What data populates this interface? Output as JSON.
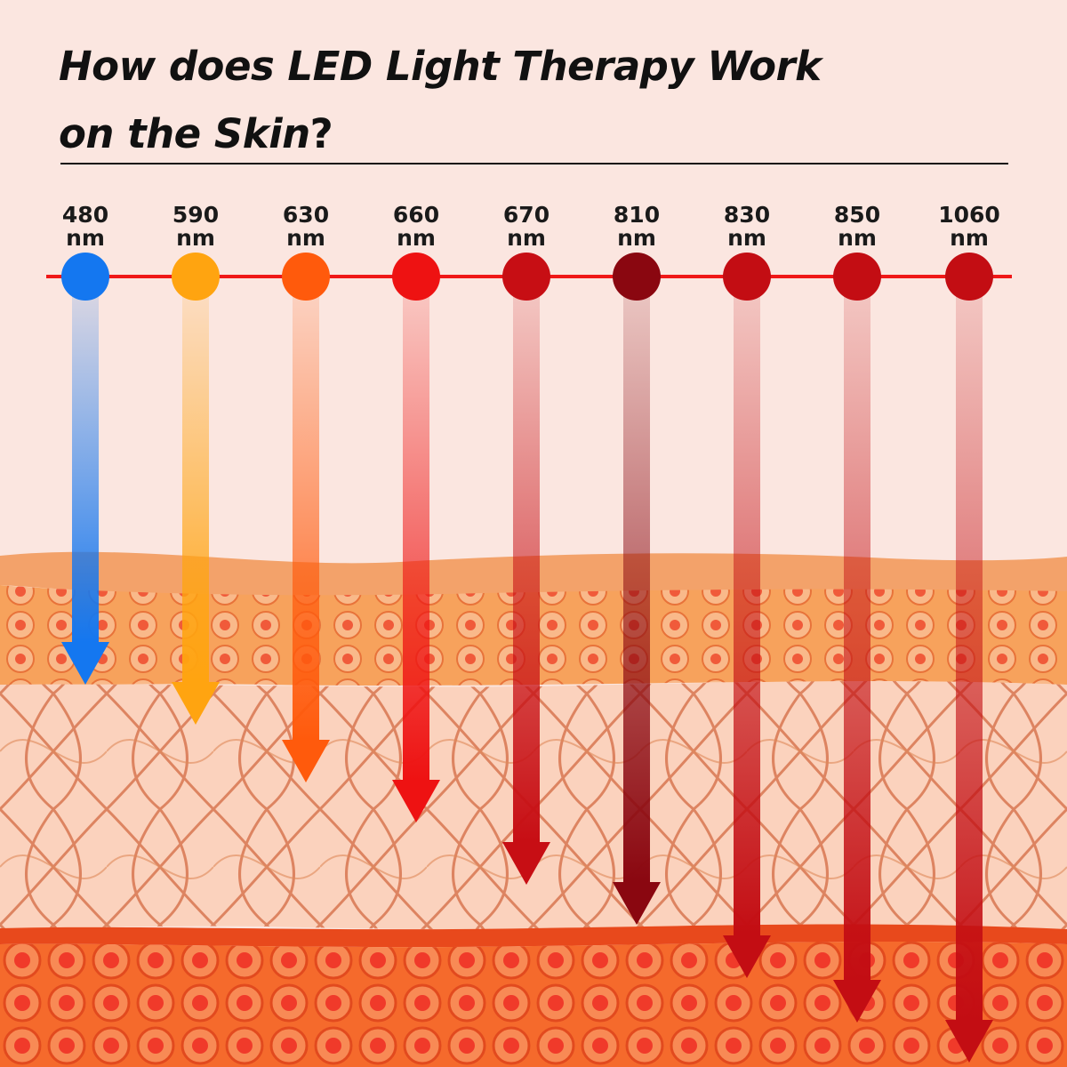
{
  "title": {
    "line1": "How does LED Light Therapy Work",
    "line2": "on the Skin",
    "question_mark": "?"
  },
  "wavelengths": [
    {
      "value": "480",
      "unit": "nm",
      "color": "#1477f0",
      "penetration": "epidermis"
    },
    {
      "value": "590",
      "unit": "nm",
      "color": "#ffa410",
      "penetration": "epidermis"
    },
    {
      "value": "630",
      "unit": "nm",
      "color": "#ff5a0c",
      "penetration": "dermis"
    },
    {
      "value": "660",
      "unit": "nm",
      "color": "#ee1212",
      "penetration": "dermis"
    },
    {
      "value": "670",
      "unit": "nm",
      "color": "#c70e14",
      "penetration": "dermis"
    },
    {
      "value": "810",
      "unit": "nm",
      "color": "#8a0710",
      "penetration": "dermis"
    },
    {
      "value": "830",
      "unit": "nm",
      "color": "#c30d13",
      "penetration": "subcutaneous"
    },
    {
      "value": "850",
      "unit": "nm",
      "color": "#c30d13",
      "penetration": "subcutaneous"
    },
    {
      "value": "1060",
      "unit": "nm",
      "color": "#c30d13",
      "penetration": "subcutaneous"
    }
  ],
  "colors": {
    "background": "#fbe6e0",
    "timeline": "#f01818",
    "skin_surface": "#f3a26a",
    "epidermis": "#f7a05a",
    "dermis": "#fbd0bb",
    "subcutaneous": "#f36a2a"
  }
}
